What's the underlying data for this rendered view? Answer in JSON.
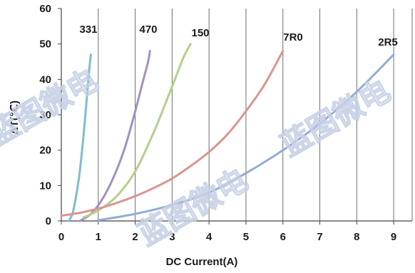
{
  "chart_data": {
    "type": "line",
    "title": "",
    "xlabel": "DC Current(A)",
    "ylabel": "ΔT(℃)",
    "xlim": [
      0,
      9.5
    ],
    "ylim": [
      0,
      60
    ],
    "xticks": [
      "0",
      "1",
      "2",
      "3",
      "4",
      "5",
      "6",
      "7",
      "8",
      "9"
    ],
    "yticks": [
      "0",
      "10",
      "20",
      "30",
      "40",
      "50",
      "60"
    ],
    "grid": "vertical",
    "series": [
      {
        "name": "331",
        "color": "#7bbfc9",
        "x": [
          0.2,
          0.3,
          0.4,
          0.5,
          0.6,
          0.7,
          0.75,
          0.8
        ],
        "y": [
          0,
          2,
          7,
          14,
          24,
          36,
          42,
          47
        ]
      },
      {
        "name": "470",
        "color": "#a091c0",
        "x": [
          0.5,
          0.8,
          1.1,
          1.4,
          1.7,
          1.95,
          2.1,
          2.25,
          2.35,
          2.4
        ],
        "y": [
          0,
          2,
          6,
          12,
          20,
          29,
          35,
          41,
          45,
          48
        ]
      },
      {
        "name": "150",
        "color": "#b5cf8a",
        "x": [
          0.6,
          1.0,
          1.5,
          2.0,
          2.5,
          3.0,
          3.3,
          3.5
        ],
        "y": [
          1,
          3,
          7,
          14,
          25,
          38,
          46,
          50
        ]
      },
      {
        "name": "7R0",
        "color": "#d99591",
        "x": [
          0,
          0.5,
          1.0,
          1.5,
          2.0,
          2.5,
          3.0,
          3.5,
          4.0,
          4.5,
          5.0,
          5.5,
          6.0
        ],
        "y": [
          1.5,
          2.3,
          3.5,
          5.1,
          7,
          9.3,
          12,
          15.5,
          19.5,
          24.5,
          31,
          38.5,
          48
        ]
      },
      {
        "name": "2R5",
        "color": "#94acd4",
        "x": [
          1,
          2,
          3,
          4,
          5,
          6,
          7,
          8,
          9
        ],
        "y": [
          0.2,
          2,
          4.5,
          8,
          13.5,
          20,
          27.5,
          36.5,
          47
        ]
      }
    ]
  },
  "watermark": "蓝图微电"
}
